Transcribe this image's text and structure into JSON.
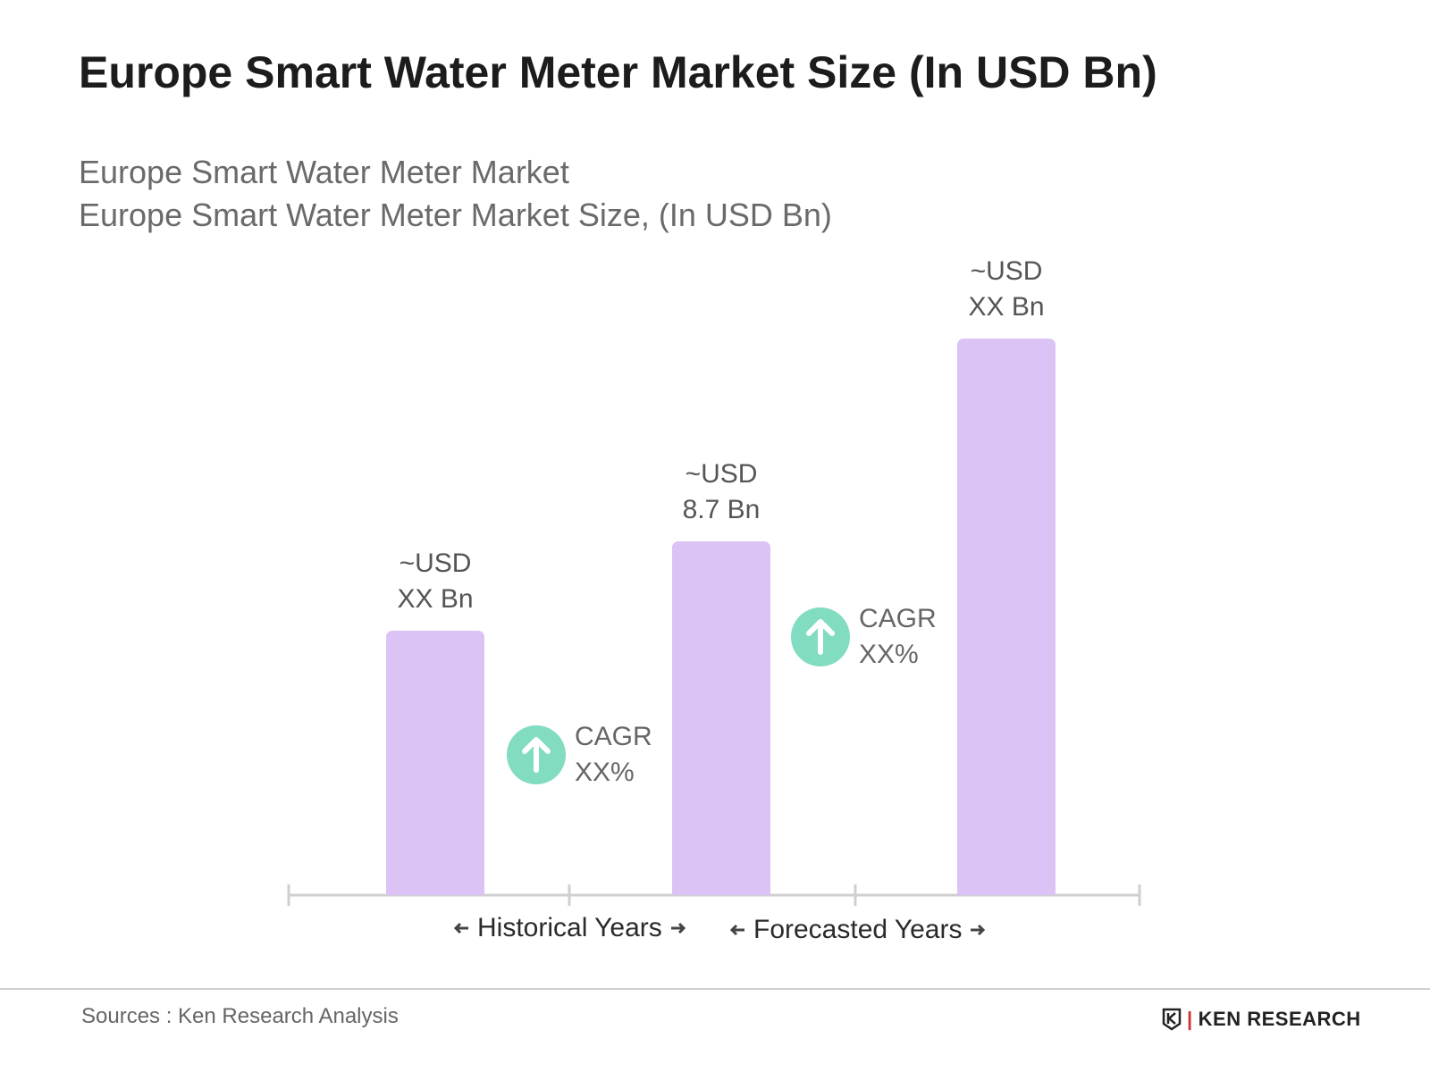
{
  "chart_data": {
    "type": "bar",
    "title": "Europe Smart Water Meter Market Size (In USD Bn)",
    "subtitle": [
      "Europe Smart Water Meter Market",
      "Europe Smart Water Meter Market Size, (In USD Bn)"
    ],
    "values": [
      6.5,
      8.7,
      13.7
    ],
    "value_labels": [
      "~USD XX Bn",
      "~USD 8.7 Bn",
      "~USD XX Bn"
    ],
    "color": "#dcc3f5",
    "annotations": [
      "CAGR XX%",
      "CAGR XX%"
    ],
    "period_labels": [
      "Historical Years",
      "Forecasted Years"
    ],
    "source": "Sources : Ken Research Analysis",
    "logo": "KEN RESEARCH"
  }
}
